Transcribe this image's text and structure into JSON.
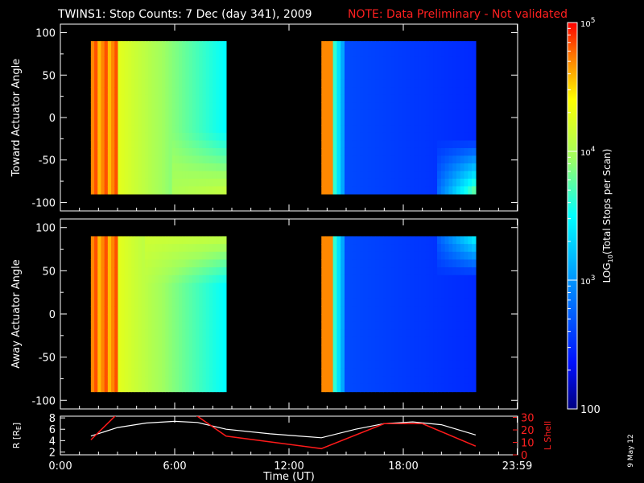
{
  "title": "TWINS1: Stop Counts:  7 Dec (day 341), 2009",
  "note": "NOTE: Data Preliminary - Not validated",
  "datestamp": "9 May 12",
  "colors": {
    "background": "#000000",
    "frame": "#ffffff",
    "note": "#ff2020",
    "rline": "#ffffff",
    "lshell": "#ff1a1a"
  },
  "chart_data": [
    {
      "type": "heatmap",
      "name": "toward",
      "ylabel": "Toward Actuator Angle",
      "xlim": [
        0,
        24
      ],
      "ylim": [
        -110,
        110
      ],
      "yticks": [
        -100,
        -50,
        0,
        50,
        100
      ],
      "data_spans_hours": [
        [
          1.6,
          8.7
        ],
        [
          13.7,
          21.8
        ]
      ],
      "data_angle_range": [
        -90,
        90
      ]
    },
    {
      "type": "heatmap",
      "name": "away",
      "ylabel": "Away Actuator Angle",
      "xlim": [
        0,
        24
      ],
      "ylim": [
        -110,
        110
      ],
      "yticks": [
        -100,
        -50,
        0,
        50,
        100
      ],
      "data_spans_hours": [
        [
          1.6,
          8.7
        ],
        [
          13.7,
          21.8
        ]
      ],
      "data_angle_range": [
        -90,
        90
      ]
    },
    {
      "type": "line",
      "name": "orbit",
      "ylabel": "R [R",
      "ylabel_sub": "E",
      "ylabel_close": "]",
      "ylabel_right": "L Shell",
      "xlabel": "Time (UT)",
      "xlim": [
        0,
        24
      ],
      "xtick_labels": [
        "0:00",
        "6:00",
        "12:00",
        "18:00",
        "23:59"
      ],
      "xtick_values": [
        0,
        6,
        12,
        18,
        23.98
      ],
      "yticks_left": [
        2,
        4,
        6,
        8
      ],
      "ylim_left": [
        1.5,
        8.3
      ],
      "yticks_right": [
        0,
        10,
        20,
        30
      ],
      "ylim_right": [
        0,
        31
      ],
      "series": [
        {
          "axis": "left",
          "x": [
            1.6,
            3,
            4.5,
            6,
            7.2,
            8.7,
            11,
            13.7,
            15.5,
            17,
            18.5,
            20,
            21.8
          ],
          "y": [
            4.8,
            6.3,
            7.1,
            7.4,
            7.2,
            6.0,
            5.2,
            4.5,
            6.0,
            7.0,
            7.3,
            6.8,
            5.0
          ]
        },
        {
          "axis": "right",
          "x": [
            1.6,
            3.0,
            7.0,
            8.7,
            13.7,
            17,
            19,
            21.8
          ],
          "y": [
            12,
            33,
            33,
            15,
            5,
            25,
            25,
            7
          ]
        }
      ]
    },
    {
      "type": "heatmap",
      "name": "colorbar",
      "scale": "log",
      "range": [
        100,
        100000
      ],
      "label_main": "LOG",
      "label_sub": "10",
      "label_rest": "(Total Stops per Scan)",
      "tick_labels": [
        {
          "base": "10",
          "exp": "5",
          "value": 100000
        },
        {
          "base": "10",
          "exp": "4",
          "value": 10000
        },
        {
          "base": "10",
          "exp": "3",
          "value": 1000
        },
        {
          "base": "100",
          "exp": "",
          "value": 100
        }
      ]
    }
  ]
}
